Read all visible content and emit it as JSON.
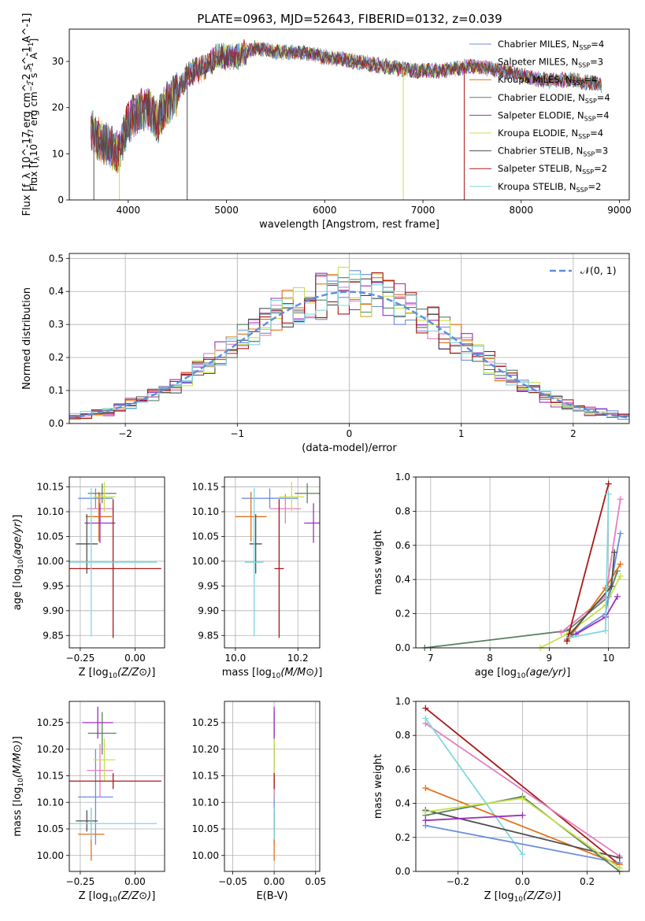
{
  "figure": {
    "title": "PLATE=0963, MJD=52643, FIBERID=0132, z=0.039"
  },
  "colors": {
    "Chabrier MILES": "#6b8fdb",
    "Salpeter MILES": "#e47fbf",
    "Kroupa MILES": "#e0711c",
    "Chabrier ELODIE": "#5a8060",
    "Salpeter ELODIE": "#9a2fbf",
    "Kroupa ELODIE": "#c8e04a",
    "Chabrier STELIB": "#505050",
    "Salpeter STELIB": "#a81818",
    "Kroupa STELIB": "#7fd8de",
    "normal_curve": "#5b8ee0"
  },
  "chart_data": [
    {
      "id": "spectrum",
      "type": "line",
      "title": "PLATE=0963, MJD=52643, FIBERID=0132, z=0.039",
      "xlabel": "wavelength [Angstrom, rest frame]",
      "ylabel": "Flux [f_λ 10^-17 erg cm^-2 s^-1 A^-1]",
      "xlim": [
        3400,
        9100
      ],
      "ylim": [
        0,
        37
      ],
      "xticks": [
        4000,
        5000,
        6000,
        7000,
        8000,
        9000
      ],
      "xtick_labels": [
        "4000",
        "5000",
        "6000",
        "7000",
        "8000",
        "9000"
      ],
      "yticks": [
        0,
        10,
        20,
        30
      ],
      "ytick_labels": [
        "0",
        "10",
        "20",
        "30"
      ],
      "grid": false,
      "legend_position": "top-right",
      "legend": [
        {
          "base": "Chabrier MILES, N",
          "sub": "SSP",
          "tail": "=4"
        },
        {
          "base": "Salpeter MILES, N",
          "sub": "SSP",
          "tail": "=3"
        },
        {
          "base": "Kroupa MILES, N",
          "sub": "SSP",
          "tail": "=4"
        },
        {
          "base": "Chabrier ELODIE, N",
          "sub": "SSP",
          "tail": "=4"
        },
        {
          "base": "Salpeter ELODIE, N",
          "sub": "SSP",
          "tail": "=4"
        },
        {
          "base": "Kroupa ELODIE, N",
          "sub": "SSP",
          "tail": "=4"
        },
        {
          "base": "Chabrier STELIB, N",
          "sub": "SSP",
          "tail": "=3"
        },
        {
          "base": "Salpeter STELIB, N",
          "sub": "SSP",
          "tail": "=2"
        },
        {
          "base": "Kroupa STELIB, N",
          "sub": "SSP",
          "tail": "=2"
        }
      ],
      "continuum_x": [
        3620,
        3700,
        3800,
        3900,
        4000,
        4100,
        4200,
        4300,
        4400,
        4500,
        4600,
        4700,
        4800,
        4900,
        5000,
        5100,
        5200,
        5300,
        5500,
        5800,
        6000,
        6300,
        6600,
        6900,
        7000,
        7200,
        7500,
        7800,
        8000,
        8200,
        8500,
        8800
      ],
      "continuum_y": [
        15,
        13,
        12,
        10,
        17,
        19,
        20,
        17,
        21,
        23,
        27,
        28,
        29,
        31,
        31,
        31,
        32,
        33,
        32,
        32,
        31,
        30,
        29,
        28,
        28,
        28,
        29,
        28,
        27,
        26,
        26,
        25
      ],
      "dips": [
        {
          "series": "Chabrier STELIB",
          "x": 3650,
          "ymin": 0
        },
        {
          "series": "Kroupa ELODIE",
          "x": 3910,
          "ymin": 0
        },
        {
          "series": "Chabrier STELIB",
          "x": 4600,
          "ymin": 0
        },
        {
          "series": "Kroupa ELODIE",
          "x": 6800,
          "ymin": 0
        },
        {
          "series": "Salpeter STELIB",
          "x": 7420,
          "ymin": 0
        }
      ]
    },
    {
      "id": "residuals",
      "type": "step",
      "xlabel": "(data-model)/error",
      "ylabel": "Normed distribution",
      "xlim": [
        -2.5,
        2.5
      ],
      "ylim": [
        0,
        0.515
      ],
      "xticks": [
        -2,
        -1,
        0,
        1,
        2
      ],
      "xtick_labels": [
        "−2",
        "−1",
        "0",
        "1",
        "2"
      ],
      "yticks": [
        0,
        0.1,
        0.2,
        0.3,
        0.4,
        0.5
      ],
      "ytick_labels": [
        "0.0",
        "0.1",
        "0.2",
        "0.3",
        "0.4",
        "0.5"
      ],
      "grid": true,
      "legend_position": "top-right",
      "legend": [
        {
          "label": "𝒩(0, 1)"
        }
      ],
      "bin_width": 0.1,
      "bin_start": -2.5
    },
    {
      "id": "age_vs_Z",
      "type": "errorbar",
      "xlabel": "Z [log10(Z/Z⊙)]",
      "ylabel": "age [log10(age/yr)]",
      "xlim": [
        -0.3,
        0.135
      ],
      "ylim": [
        9.825,
        10.17
      ],
      "xticks": [
        -0.25,
        0.0
      ],
      "xtick_labels": [
        "−0.25",
        "0.00"
      ],
      "yticks": [
        9.85,
        9.9,
        9.95,
        10.0,
        10.05,
        10.1,
        10.15
      ],
      "ytick_labels": [
        "9.85",
        "9.90",
        "9.95",
        "10.00",
        "10.05",
        "10.10",
        "10.15"
      ],
      "grid": true,
      "points": [
        {
          "series": "Chabrier MILES",
          "x": -0.18,
          "xerr": 0.08,
          "y": 10.127,
          "yerr": 0.02
        },
        {
          "series": "Salpeter MILES",
          "x": -0.16,
          "xerr": 0.06,
          "y": 10.106,
          "yerr": 0.03
        },
        {
          "series": "Kroupa MILES",
          "x": -0.165,
          "xerr": 0.06,
          "y": 10.09,
          "yerr": 0.05
        },
        {
          "series": "Chabrier ELODIE",
          "x": -0.15,
          "xerr": 0.065,
          "y": 10.137,
          "yerr": 0.02
        },
        {
          "series": "Salpeter ELODIE",
          "x": -0.16,
          "xerr": 0.07,
          "y": 10.077,
          "yerr": 0.04
        },
        {
          "series": "Kroupa ELODIE",
          "x": -0.14,
          "xerr": 0.05,
          "y": 10.13,
          "yerr": 0.03
        },
        {
          "series": "Chabrier STELIB",
          "x": -0.22,
          "xerr": 0.05,
          "y": 10.035,
          "yerr": 0.06
        },
        {
          "series": "Salpeter STELIB",
          "x": -0.1,
          "xerr": 0.22,
          "y": 9.985,
          "yerr": 0.14
        },
        {
          "series": "Kroupa STELIB",
          "x": -0.2,
          "xerr": 0.3,
          "y": 9.998,
          "yerr": 0.15
        }
      ]
    },
    {
      "id": "age_vs_mass",
      "type": "errorbar",
      "xlabel": "mass [log10(M/M⊙)]",
      "ylabel": "",
      "xlim": [
        9.965,
        10.27
      ],
      "ylim": [
        9.825,
        10.17
      ],
      "xticks": [
        10.0,
        10.2
      ],
      "xtick_labels": [
        "10.0",
        "10.2"
      ],
      "yticks": [
        9.85,
        9.9,
        9.95,
        10.0,
        10.05,
        10.1,
        10.15
      ],
      "ytick_labels": [
        "9.85",
        "9.90",
        "9.95",
        "10.00",
        "10.05",
        "10.10",
        "10.15"
      ],
      "grid": true,
      "points": [
        {
          "series": "Chabrier MILES",
          "x": 10.11,
          "xerr": 0.09,
          "y": 10.127,
          "yerr": 0.02
        },
        {
          "series": "Salpeter MILES",
          "x": 10.16,
          "xerr": 0.05,
          "y": 10.106,
          "yerr": 0.03
        },
        {
          "series": "Kroupa MILES",
          "x": 10.05,
          "xerr": 0.05,
          "y": 10.09,
          "yerr": 0.05
        },
        {
          "series": "Chabrier ELODIE",
          "x": 10.23,
          "xerr": 0.04,
          "y": 10.137,
          "yerr": 0.02
        },
        {
          "series": "Salpeter ELODIE",
          "x": 10.25,
          "xerr": 0.03,
          "y": 10.077,
          "yerr": 0.04
        },
        {
          "series": "Kroupa ELODIE",
          "x": 10.18,
          "xerr": 0.04,
          "y": 10.13,
          "yerr": 0.03
        },
        {
          "series": "Chabrier STELIB",
          "x": 10.065,
          "xerr": 0.02,
          "y": 10.035,
          "yerr": 0.06
        },
        {
          "series": "Salpeter STELIB",
          "x": 10.14,
          "xerr": 0.015,
          "y": 9.985,
          "yerr": 0.14
        },
        {
          "series": "Kroupa STELIB",
          "x": 10.06,
          "xerr": 0.03,
          "y": 9.998,
          "yerr": 0.15
        }
      ]
    },
    {
      "id": "weight_vs_age",
      "type": "line",
      "xlabel": "age [log10(age/yr)]",
      "ylabel": "mass weight",
      "xlim": [
        6.75,
        10.35
      ],
      "ylim": [
        0,
        1.0
      ],
      "xticks": [
        7,
        8,
        9,
        10
      ],
      "xtick_labels": [
        "7",
        "8",
        "9",
        "10"
      ],
      "yticks": [
        0,
        0.2,
        0.4,
        0.6,
        0.8,
        1.0
      ],
      "ytick_labels": [
        "0.0",
        "0.2",
        "0.4",
        "0.6",
        "0.8",
        "1.0"
      ],
      "grid": true,
      "series": [
        {
          "name": "Chabrier ELODIE",
          "x": [
            6.9,
            9.3,
            10.0,
            10.15
          ],
          "y": [
            0.0,
            0.1,
            0.3,
            0.45
          ]
        },
        {
          "name": "Kroupa ELODIE",
          "x": [
            8.85,
            9.3,
            9.95,
            10.2
          ],
          "y": [
            0.0,
            0.08,
            0.25,
            0.42
          ]
        },
        {
          "name": "Chabrier MILES",
          "x": [
            9.3,
            9.95,
            10.2
          ],
          "y": [
            0.05,
            0.2,
            0.67
          ]
        },
        {
          "name": "Salpeter MILES",
          "x": [
            9.2,
            9.95,
            10.2
          ],
          "y": [
            0.09,
            0.3,
            0.87
          ]
        },
        {
          "name": "Kroupa MILES",
          "x": [
            9.3,
            9.95,
            10.2
          ],
          "y": [
            0.04,
            0.35,
            0.49
          ]
        },
        {
          "name": "Salpeter ELODIE",
          "x": [
            9.45,
            9.95,
            10.15
          ],
          "y": [
            0.08,
            0.18,
            0.3
          ]
        },
        {
          "name": "Chabrier STELIB",
          "x": [
            9.35,
            10.05,
            10.1
          ],
          "y": [
            0.08,
            0.36,
            0.56
          ]
        },
        {
          "name": "Salpeter STELIB",
          "x": [
            9.3,
            10.0
          ],
          "y": [
            0.04,
            0.96
          ]
        },
        {
          "name": "Kroupa STELIB",
          "x": [
            9.35,
            9.95,
            10.0
          ],
          "y": [
            0.06,
            0.1,
            0.9
          ]
        }
      ]
    },
    {
      "id": "mass_vs_Z",
      "type": "errorbar",
      "xlabel": "Z [log10(Z/Z⊙)]",
      "ylabel": "mass [log10(M/M⊙)]",
      "xlim": [
        -0.3,
        0.135
      ],
      "ylim": [
        9.97,
        10.29
      ],
      "xticks": [
        -0.25,
        0.0
      ],
      "xtick_labels": [
        "−0.25",
        "0.00"
      ],
      "yticks": [
        10.0,
        10.05,
        10.1,
        10.15,
        10.2,
        10.25
      ],
      "ytick_labels": [
        "10.00",
        "10.05",
        "10.10",
        "10.15",
        "10.20",
        "10.25"
      ],
      "grid": true,
      "points": [
        {
          "series": "Chabrier MILES",
          "x": -0.18,
          "xerr": 0.08,
          "y": 10.11,
          "yerr": 0.09
        },
        {
          "series": "Salpeter MILES",
          "x": -0.16,
          "xerr": 0.06,
          "y": 10.16,
          "yerr": 0.05
        },
        {
          "series": "Kroupa MILES",
          "x": -0.2,
          "xerr": 0.06,
          "y": 10.04,
          "yerr": 0.05
        },
        {
          "series": "Chabrier ELODIE",
          "x": -0.15,
          "xerr": 0.065,
          "y": 10.23,
          "yerr": 0.04
        },
        {
          "series": "Salpeter ELODIE",
          "x": -0.17,
          "xerr": 0.07,
          "y": 10.25,
          "yerr": 0.03
        },
        {
          "series": "Kroupa ELODIE",
          "x": -0.14,
          "xerr": 0.05,
          "y": 10.18,
          "yerr": 0.04
        },
        {
          "series": "Chabrier STELIB",
          "x": -0.22,
          "xerr": 0.05,
          "y": 10.065,
          "yerr": 0.02
        },
        {
          "series": "Salpeter STELIB",
          "x": -0.1,
          "xerr": 0.22,
          "y": 10.14,
          "yerr": 0.015
        },
        {
          "series": "Kroupa STELIB",
          "x": -0.2,
          "xerr": 0.3,
          "y": 10.06,
          "yerr": 0.03
        }
      ]
    },
    {
      "id": "mass_vs_ebv",
      "type": "errorbar",
      "xlabel": "E(B-V)",
      "ylabel": "",
      "xlim": [
        -0.06,
        0.055
      ],
      "ylim": [
        9.97,
        10.29
      ],
      "xticks": [
        -0.05,
        0.0,
        0.05
      ],
      "xtick_labels": [
        "−0.05",
        "0.00",
        "0.05"
      ],
      "yticks": [
        10.0,
        10.05,
        10.1,
        10.15,
        10.2,
        10.25
      ],
      "ytick_labels": [
        "10.00",
        "10.05",
        "10.10",
        "10.15",
        "10.20",
        "10.25"
      ],
      "grid": true,
      "points": [
        {
          "series": "Chabrier MILES",
          "x": 0,
          "xerr": 0,
          "y": 10.11,
          "yerr": 0.09
        },
        {
          "series": "Salpeter MILES",
          "x": 0,
          "xerr": 0,
          "y": 10.16,
          "yerr": 0.05
        },
        {
          "series": "Kroupa MILES",
          "x": 0,
          "xerr": 0,
          "y": 10.04,
          "yerr": 0.05
        },
        {
          "series": "Chabrier ELODIE",
          "x": 0,
          "xerr": 0,
          "y": 10.23,
          "yerr": 0.04
        },
        {
          "series": "Salpeter ELODIE",
          "x": 0,
          "xerr": 0,
          "y": 10.25,
          "yerr": 0.03
        },
        {
          "series": "Kroupa ELODIE",
          "x": 0,
          "xerr": 0,
          "y": 10.18,
          "yerr": 0.04
        },
        {
          "series": "Chabrier STELIB",
          "x": 0,
          "xerr": 0,
          "y": 10.065,
          "yerr": 0.02
        },
        {
          "series": "Salpeter STELIB",
          "x": 0,
          "xerr": 0,
          "y": 10.14,
          "yerr": 0.015
        },
        {
          "series": "Kroupa STELIB",
          "x": 0,
          "xerr": 0,
          "y": 10.06,
          "yerr": 0.03
        }
      ]
    },
    {
      "id": "weight_vs_Z",
      "type": "line",
      "xlabel": "Z [log10(Z/Z⊙)]",
      "ylabel": "mass weight",
      "xlim": [
        -0.33,
        0.33
      ],
      "ylim": [
        0,
        1.0
      ],
      "xticks": [
        -0.2,
        0.0,
        0.2
      ],
      "xtick_labels": [
        "−0.2",
        "0.0",
        "0.2"
      ],
      "yticks": [
        0,
        0.2,
        0.4,
        0.6,
        0.8,
        1.0
      ],
      "ytick_labels": [
        "0.0",
        "0.2",
        "0.4",
        "0.6",
        "0.8",
        "1.0"
      ],
      "grid": true,
      "series": [
        {
          "name": "Salpeter STELIB",
          "x": [
            -0.3,
            0.3
          ],
          "y": [
            0.96,
            0.04
          ]
        },
        {
          "name": "Salpeter MILES",
          "x": [
            -0.3,
            0.3
          ],
          "y": [
            0.87,
            0.09
          ]
        },
        {
          "name": "Kroupa STELIB",
          "x": [
            -0.3,
            0.0
          ],
          "y": [
            0.9,
            0.1
          ]
        },
        {
          "name": "Chabrier MILES",
          "x": [
            -0.3,
            0.3
          ],
          "y": [
            0.27,
            0.05
          ]
        },
        {
          "name": "Kroupa MILES",
          "x": [
            -0.3,
            0.3
          ],
          "y": [
            0.49,
            0.04
          ]
        },
        {
          "name": "Chabrier STELIB",
          "x": [
            -0.3,
            0.3
          ],
          "y": [
            0.36,
            0.08
          ]
        },
        {
          "name": "Chabrier ELODIE",
          "x": [
            -0.3,
            0.0,
            0.3
          ],
          "y": [
            0.33,
            0.44,
            0.0
          ]
        },
        {
          "name": "Kroupa ELODIE",
          "x": [
            -0.3,
            0.0,
            0.3
          ],
          "y": [
            0.35,
            0.43,
            0.02
          ]
        },
        {
          "name": "Salpeter ELODIE",
          "x": [
            -0.3,
            0.0
          ],
          "y": [
            0.3,
            0.33
          ]
        }
      ]
    }
  ]
}
